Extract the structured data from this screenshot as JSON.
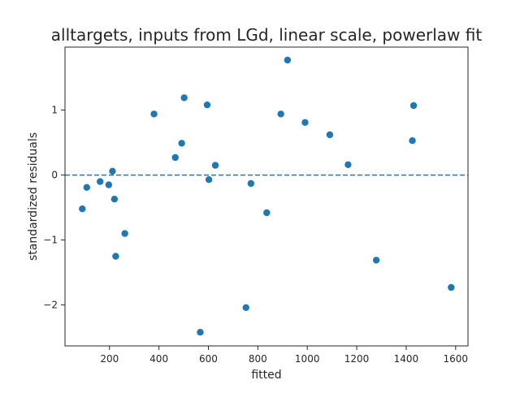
{
  "chart_data": {
    "type": "scatter",
    "title": "alltargets, inputs from LGd, linear scale, powerlaw fit",
    "xlabel": "fitted",
    "ylabel": "standardized residuals",
    "xlim": [
      20,
      1650
    ],
    "ylim": [
      -2.63,
      1.97
    ],
    "xticks": [
      200,
      400,
      600,
      800,
      1000,
      1200,
      1400,
      1600
    ],
    "xtick_labels": [
      "200",
      "400",
      "600",
      "800",
      "1000",
      "1200",
      "1400",
      "1600"
    ],
    "yticks": [
      -2,
      -1,
      0,
      1
    ],
    "ytick_labels": [
      "−2",
      "−1",
      "0",
      "1"
    ],
    "grid": false,
    "reference_line": {
      "y": 0,
      "style": "dashed"
    },
    "points": [
      {
        "x": 90,
        "y": -0.52
      },
      {
        "x": 108,
        "y": -0.19
      },
      {
        "x": 162,
        "y": -0.1
      },
      {
        "x": 197,
        "y": -0.15
      },
      {
        "x": 212,
        "y": 0.06
      },
      {
        "x": 220,
        "y": -0.37
      },
      {
        "x": 225,
        "y": -1.25
      },
      {
        "x": 262,
        "y": -0.9
      },
      {
        "x": 380,
        "y": 0.94
      },
      {
        "x": 466,
        "y": 0.27
      },
      {
        "x": 492,
        "y": 0.49
      },
      {
        "x": 502,
        "y": 1.19
      },
      {
        "x": 567,
        "y": -2.42
      },
      {
        "x": 595,
        "y": 1.08
      },
      {
        "x": 602,
        "y": -0.07
      },
      {
        "x": 628,
        "y": 0.15
      },
      {
        "x": 752,
        "y": -2.04
      },
      {
        "x": 772,
        "y": -0.13
      },
      {
        "x": 836,
        "y": -0.58
      },
      {
        "x": 893,
        "y": 0.94
      },
      {
        "x": 920,
        "y": 1.77
      },
      {
        "x": 991,
        "y": 0.81
      },
      {
        "x": 1091,
        "y": 0.62
      },
      {
        "x": 1165,
        "y": 0.16
      },
      {
        "x": 1279,
        "y": -1.31
      },
      {
        "x": 1425,
        "y": 0.53
      },
      {
        "x": 1430,
        "y": 1.07
      },
      {
        "x": 1582,
        "y": -1.73
      }
    ]
  },
  "colors": {
    "points": "#1f77b4",
    "reference_line": "#1f77b4",
    "axes": "#262626",
    "background": "#ffffff"
  }
}
